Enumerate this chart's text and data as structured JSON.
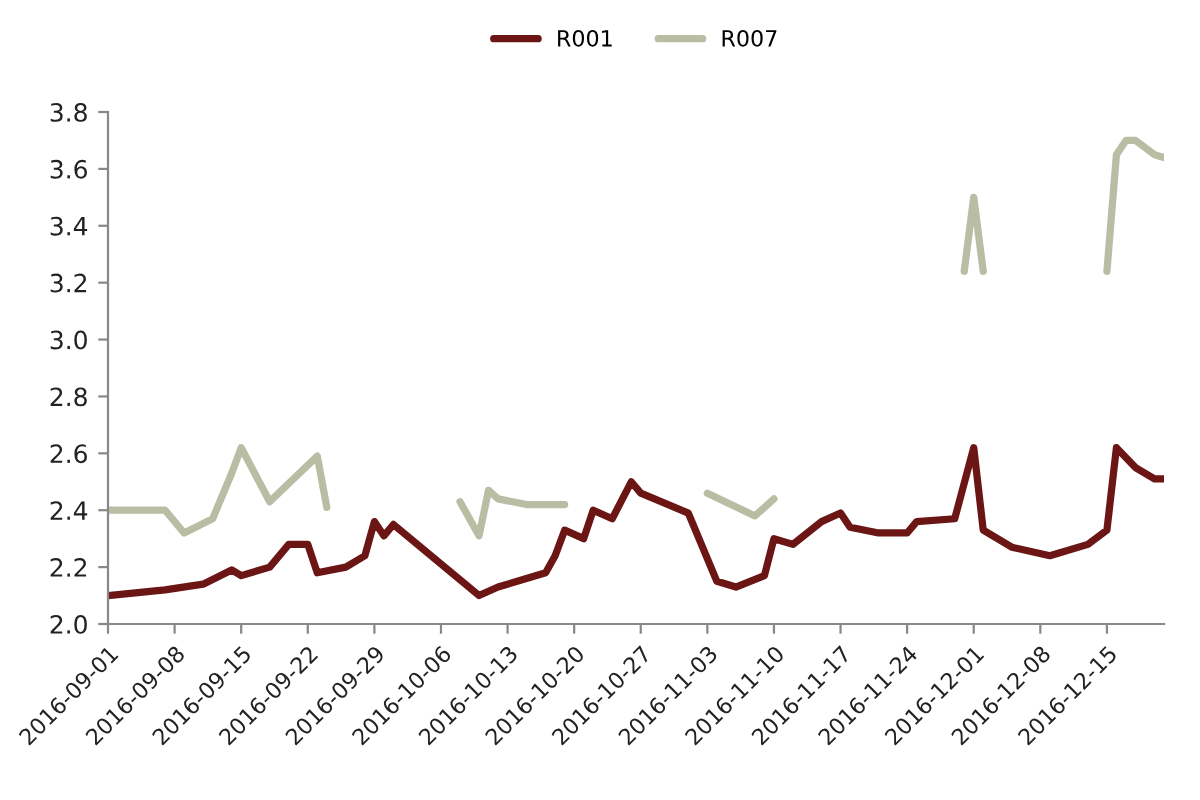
{
  "chart_data": {
    "type": "line",
    "legend": "top",
    "grid": false,
    "marker": "none",
    "line_style": "solid",
    "xlim": [
      "2016-09-01",
      "2016-12-21"
    ],
    "xticks": [
      "2016-09-01",
      "2016-09-08",
      "2016-09-15",
      "2016-09-22",
      "2016-09-29",
      "2016-10-06",
      "2016-10-13",
      "2016-10-20",
      "2016-10-27",
      "2016-11-03",
      "2016-11-10",
      "2016-11-17",
      "2016-11-24",
      "2016-12-01",
      "2016-12-08",
      "2016-12-15"
    ],
    "ylim": [
      2.0,
      3.8
    ],
    "yticks": [
      {
        "value": 2.0,
        "label": "2.0"
      },
      2.2,
      2.4,
      2.6,
      2.8,
      {
        "value": 3.0,
        "label": "3.0"
      },
      3.2,
      3.4,
      3.6,
      3.8
    ],
    "series": [
      {
        "name": "R001",
        "color": "#6b1515",
        "x": [
          "2016-09-01",
          "2016-09-07",
          "2016-09-11",
          "2016-09-14",
          "2016-09-15",
          "2016-09-18",
          "2016-09-20",
          "2016-09-22",
          "2016-09-23",
          "2016-09-26",
          "2016-09-28",
          "2016-09-29",
          "2016-09-30",
          "2016-10-01",
          "2016-10-10",
          "2016-10-12",
          "2016-10-17",
          "2016-10-18",
          "2016-10-19",
          "2016-10-21",
          "2016-10-22",
          "2016-10-24",
          "2016-10-26",
          "2016-10-27",
          "2016-11-01",
          "2016-11-02",
          "2016-11-04",
          "2016-11-06",
          "2016-11-09",
          "2016-11-10",
          "2016-11-12",
          "2016-11-15",
          "2016-11-17",
          "2016-11-18",
          "2016-11-21",
          "2016-11-24",
          "2016-11-25",
          "2016-11-29",
          "2016-12-01",
          "2016-12-02",
          "2016-12-05",
          "2016-12-09",
          "2016-12-13",
          "2016-12-15",
          "2016-12-16",
          "2016-12-18",
          "2016-12-20",
          "2016-12-21"
        ],
        "values": [
          2.1,
          2.12,
          2.14,
          2.19,
          2.17,
          2.2,
          2.28,
          2.28,
          2.18,
          2.2,
          2.24,
          2.36,
          2.31,
          2.35,
          2.1,
          2.13,
          2.18,
          2.24,
          2.33,
          2.3,
          2.4,
          2.37,
          2.5,
          2.46,
          2.39,
          2.31,
          2.15,
          2.13,
          2.17,
          2.3,
          2.28,
          2.36,
          2.39,
          2.34,
          2.32,
          2.32,
          2.36,
          2.37,
          2.62,
          2.33,
          2.27,
          2.24,
          2.28,
          2.33,
          2.62,
          2.55,
          2.51,
          2.51
        ]
      },
      {
        "name": "R007",
        "color": "#b8bda3",
        "x": [
          "2016-09-01",
          "2016-09-07",
          "2016-09-09",
          "2016-09-12",
          "2016-09-14",
          "2016-09-15",
          "2016-09-18",
          "2016-09-23",
          "2016-09-24",
          "2016-09-25",
          "2016-10-08",
          "2016-10-10",
          "2016-10-11",
          "2016-10-12",
          "2016-10-15",
          "2016-10-19",
          "2016-10-20",
          "2016-11-03",
          "2016-11-08",
          "2016-11-10",
          "2016-11-11",
          "2016-11-30",
          "2016-12-01",
          "2016-12-02",
          "2016-12-14",
          "2016-12-15",
          "2016-12-16",
          "2016-12-17",
          "2016-12-18",
          "2016-12-20",
          "2016-12-21"
        ],
        "values": [
          2.4,
          2.4,
          2.32,
          2.37,
          2.53,
          2.62,
          2.43,
          2.59,
          2.41,
          null,
          2.43,
          2.31,
          2.47,
          2.44,
          2.42,
          2.42,
          null,
          2.46,
          2.38,
          2.44,
          null,
          3.24,
          3.5,
          3.24,
          null,
          3.24,
          3.65,
          3.7,
          3.7,
          3.65,
          3.64
        ]
      }
    ]
  }
}
